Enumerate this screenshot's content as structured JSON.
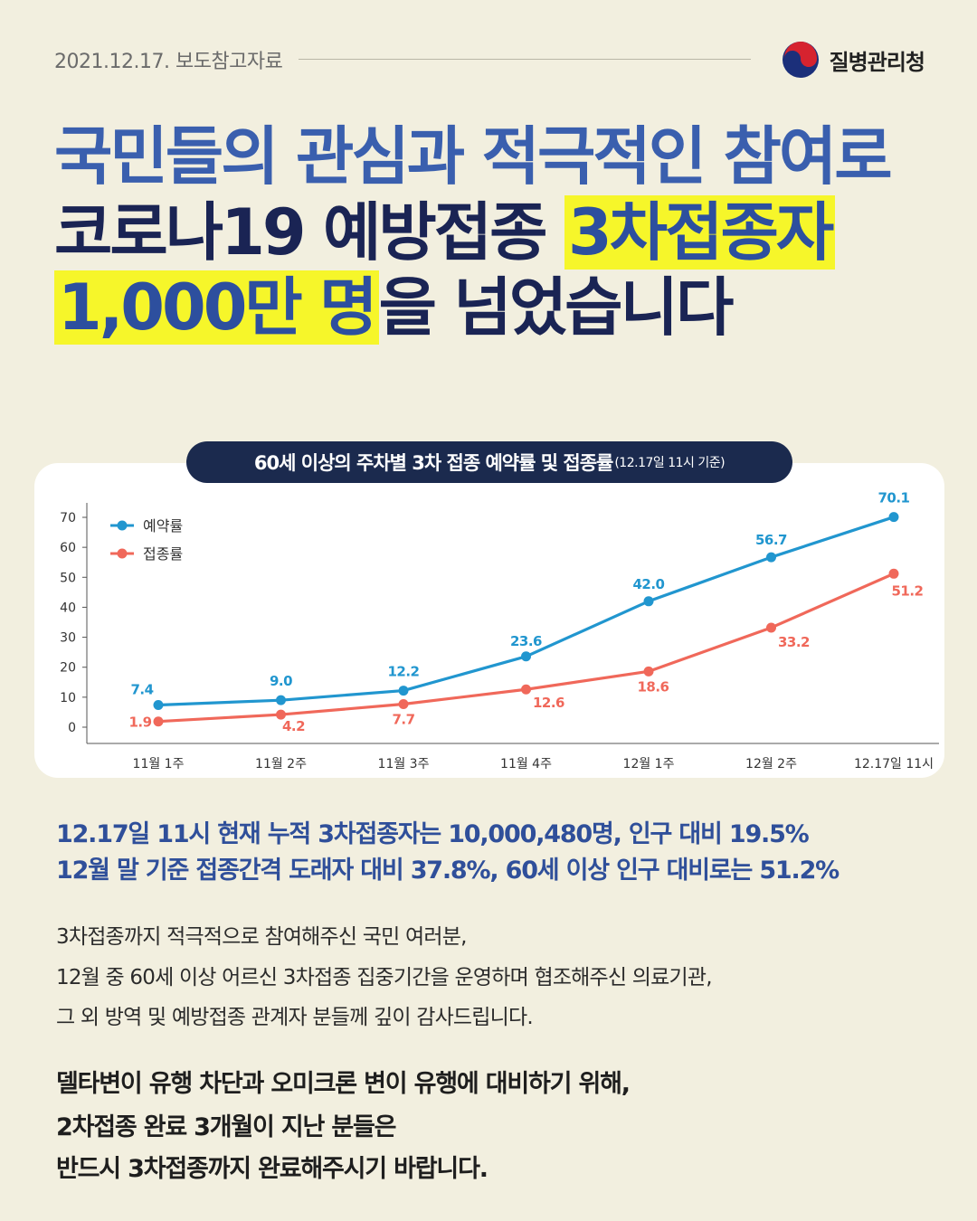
{
  "header": {
    "date": "2021.12.17. 보도참고자료",
    "org_name": "질병관리청"
  },
  "headline": {
    "line1": "국민들의 관심과 적극적인 참여로",
    "line2_plain": "코로나19 예방접종 ",
    "line2_mark": "3차접종자",
    "line3_mark": "1,000만 명",
    "line3_plain": "을 넘었습니다"
  },
  "chart_title": {
    "main": "60세 이상의 주차별 3차 접종 예약률 및 접종률",
    "sub": "(12.17일 11시 기준)"
  },
  "chart_data": {
    "type": "line",
    "categories": [
      "11월 1주",
      "11월 2주",
      "11월 3주",
      "11월 4주",
      "12월 1주",
      "12월 2주",
      "12.17일 11시"
    ],
    "series": [
      {
        "name": "예약률",
        "color": "#2196cf",
        "values": [
          7.4,
          9.0,
          12.2,
          23.6,
          42.0,
          56.7,
          70.1
        ],
        "labels": [
          "7.4",
          "9.0",
          "12.2",
          "23.6",
          "42.0",
          "56.7",
          "70.1"
        ]
      },
      {
        "name": "접종률",
        "color": "#f0685a",
        "values": [
          1.9,
          4.2,
          7.7,
          12.6,
          18.6,
          33.2,
          51.2
        ],
        "labels": [
          "1.9",
          "4.2",
          "7.7",
          "12.6",
          "18.6",
          "33.2",
          "51.2"
        ]
      }
    ],
    "ylim": [
      0,
      70
    ],
    "yticks": [
      "0",
      "10",
      "20",
      "30",
      "40",
      "50",
      "60",
      "70"
    ],
    "legend": "top-left",
    "grid": false
  },
  "summary": {
    "line1": "12.17일 11시 현재 누적 3차접종자는 10,000,480명, 인구 대비 19.5%",
    "line2": "12월 말 기준 접종간격 도래자 대비 37.8%, 60세 이상 인구 대비로는 51.2%"
  },
  "body": {
    "line1": "3차접종까지 적극적으로 참여해주신 국민 여러분,",
    "line2": "12월 중 60세 이상 어르신 3차접종 집중기간을 운영하며 협조해주신 의료기관,",
    "line3": "그 외 방역 및 예방접종 관계자 분들께 깊이 감사드립니다."
  },
  "closing": {
    "line1": "델타변이 유행 차단과 오미크론 변이 유행에 대비하기 위해,",
    "line2": "2차접종 완료 3개월이 지난 분들은",
    "line3": "반드시 3차접종까지 완료해주시기 바랍니다."
  },
  "icons": {
    "logo": "taegeuk-logo-icon"
  }
}
